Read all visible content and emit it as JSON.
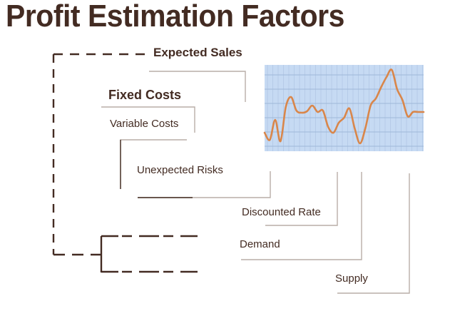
{
  "title": "Profit Estimation Factors",
  "factors": [
    {
      "label": "Expected Sales",
      "emphasis": "bold"
    },
    {
      "label": "Fixed Costs",
      "emphasis": "bold"
    },
    {
      "label": "Variable Costs",
      "emphasis": "normal"
    },
    {
      "label": "Unexpected Risks",
      "emphasis": "normal"
    },
    {
      "label": "Discounted Rate",
      "emphasis": "normal"
    },
    {
      "label": "Demand",
      "emphasis": "normal"
    },
    {
      "label": "Supply",
      "emphasis": "normal"
    }
  ],
  "colors": {
    "text": "#432b22",
    "connector_line": "#b9aea7",
    "dashed_bracket": "#432b22",
    "chart_background": "#c6daf3",
    "chart_grid": "#9fb8d8",
    "chart_line": "#d9864a"
  },
  "chart_data": {
    "type": "line",
    "title": "",
    "xlabel": "",
    "ylabel": "",
    "grid": true,
    "legend": "none",
    "x": [
      0,
      1,
      2,
      3,
      4,
      5,
      6,
      7,
      8,
      9,
      10,
      11,
      12,
      13,
      14,
      15,
      16,
      17,
      18,
      19,
      20,
      21,
      22,
      23,
      24,
      25,
      26,
      27,
      28,
      29,
      30
    ],
    "values": [
      26,
      16,
      44,
      14,
      62,
      76,
      57,
      54,
      56,
      64,
      55,
      57,
      34,
      26,
      40,
      47,
      60,
      32,
      11,
      32,
      64,
      74,
      90,
      104,
      114,
      87,
      72,
      49,
      55,
      55,
      55
    ],
    "ylim": [
      0,
      121
    ]
  }
}
